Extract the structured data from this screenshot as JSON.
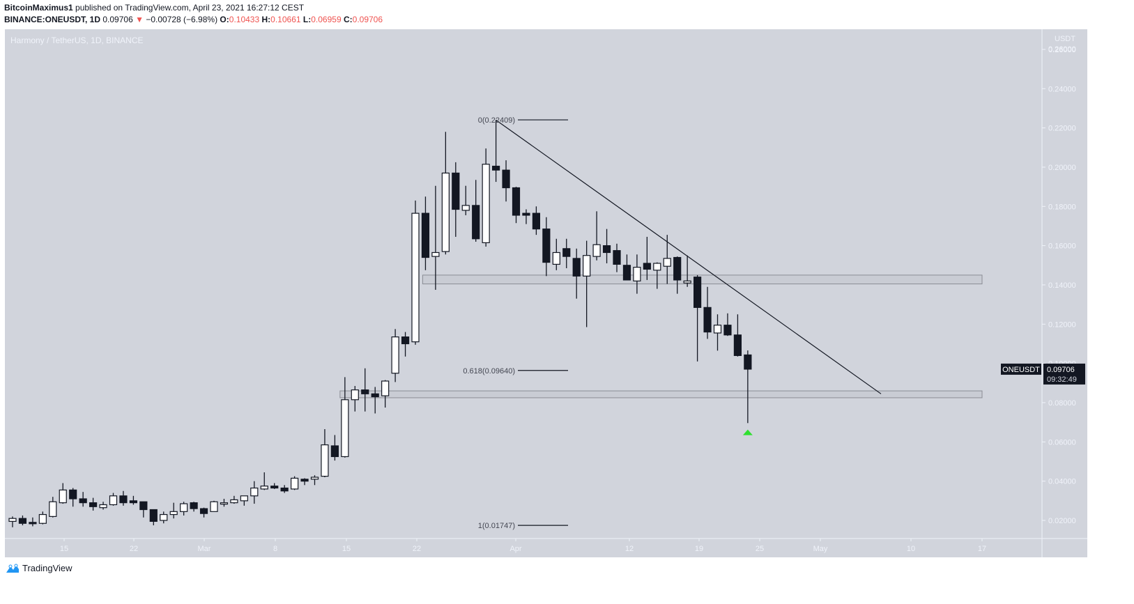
{
  "header": {
    "author": "BitcoinMaximus1",
    "published_text": " published on TradingView.com, April 23, 2021 16:27:12 CEST",
    "symbol": "BINANCE:ONEUSDT, 1D",
    "last": "0.09706",
    "change": "−0.00728 (−6.98%)",
    "o_label": "O:",
    "o": "0.10433",
    "h_label": "H:",
    "h": "0.10661",
    "l_label": "L:",
    "l": "0.06959",
    "c_label": "C:",
    "c": "0.09706"
  },
  "chart_title": "Harmony / TetherUS, 1D, BINANCE",
  "price_axis_unit": "USDT",
  "last_price_tag": {
    "symbol": "ONEUSDT",
    "price": "0.09706",
    "countdown": "09:32:49"
  },
  "footer": {
    "brand": "TradingView"
  },
  "colors": {
    "background": "#d1d4dc",
    "up_body": "#ffffff",
    "down_body": "#131722",
    "axis_text": "#f0f3fa",
    "zone": "#c3c6cf",
    "arrow": "#2fe02f"
  },
  "chart_data": {
    "type": "candlestick",
    "title": "Harmony / TetherUS, 1D, BINANCE",
    "ylabel": "USDT",
    "ylim": [
      0.0,
      0.26
    ],
    "y_ticks": [
      "0.26000",
      "0.24000",
      "0.22000",
      "0.20000",
      "0.18000",
      "0.16000",
      "0.14000",
      "0.12000",
      "0.10000",
      "0.08000",
      "0.06000",
      "0.04000",
      "0.02000"
    ],
    "x_ticks": [
      "15",
      "22",
      "Mar",
      "8",
      "15",
      "22",
      "Apr",
      "12",
      "19",
      "25",
      "May",
      "10",
      "17"
    ],
    "candles": [
      {
        "d": "Feb 9",
        "o": 0.0195,
        "h": 0.022,
        "l": 0.0165,
        "c": 0.021
      },
      {
        "d": "Feb 10",
        "o": 0.021,
        "h": 0.0225,
        "l": 0.0175,
        "c": 0.0185
      },
      {
        "d": "Feb 11",
        "o": 0.019,
        "h": 0.0215,
        "l": 0.017,
        "c": 0.0185
      },
      {
        "d": "Feb 12",
        "o": 0.0185,
        "h": 0.0245,
        "l": 0.018,
        "c": 0.023
      },
      {
        "d": "Feb 13",
        "o": 0.022,
        "h": 0.032,
        "l": 0.0215,
        "c": 0.0295
      },
      {
        "d": "Feb 14",
        "o": 0.029,
        "h": 0.039,
        "l": 0.0285,
        "c": 0.0355
      },
      {
        "d": "Feb 15",
        "o": 0.0355,
        "h": 0.0365,
        "l": 0.027,
        "c": 0.031
      },
      {
        "d": "Feb 16",
        "o": 0.031,
        "h": 0.0345,
        "l": 0.027,
        "c": 0.029
      },
      {
        "d": "Feb 17",
        "o": 0.029,
        "h": 0.0315,
        "l": 0.025,
        "c": 0.027
      },
      {
        "d": "Feb 18",
        "o": 0.0265,
        "h": 0.0295,
        "l": 0.0255,
        "c": 0.028
      },
      {
        "d": "Feb 19",
        "o": 0.028,
        "h": 0.034,
        "l": 0.0275,
        "c": 0.0325
      },
      {
        "d": "Feb 20",
        "o": 0.0325,
        "h": 0.035,
        "l": 0.0275,
        "c": 0.029
      },
      {
        "d": "Feb 21",
        "o": 0.03,
        "h": 0.0325,
        "l": 0.028,
        "c": 0.029
      },
      {
        "d": "Feb 22",
        "o": 0.0295,
        "h": 0.0295,
        "l": 0.0215,
        "c": 0.0255
      },
      {
        "d": "Feb 23",
        "o": 0.0255,
        "h": 0.0255,
        "l": 0.0175,
        "c": 0.0195
      },
      {
        "d": "Feb 24",
        "o": 0.02,
        "h": 0.0245,
        "l": 0.0185,
        "c": 0.023
      },
      {
        "d": "Feb 25",
        "o": 0.023,
        "h": 0.029,
        "l": 0.021,
        "c": 0.0245
      },
      {
        "d": "Feb 26",
        "o": 0.0245,
        "h": 0.0295,
        "l": 0.0225,
        "c": 0.0285
      },
      {
        "d": "Feb 27",
        "o": 0.029,
        "h": 0.0295,
        "l": 0.0245,
        "c": 0.026
      },
      {
        "d": "Feb 28",
        "o": 0.026,
        "h": 0.0265,
        "l": 0.0215,
        "c": 0.0235
      },
      {
        "d": "Mar 1",
        "o": 0.0245,
        "h": 0.03,
        "l": 0.0245,
        "c": 0.0295
      },
      {
        "d": "Mar 2",
        "o": 0.029,
        "h": 0.031,
        "l": 0.027,
        "c": 0.029
      },
      {
        "d": "Mar 3",
        "o": 0.029,
        "h": 0.0325,
        "l": 0.0285,
        "c": 0.0305
      },
      {
        "d": "Mar 4",
        "o": 0.03,
        "h": 0.0325,
        "l": 0.0275,
        "c": 0.0325
      },
      {
        "d": "Mar 5",
        "o": 0.0325,
        "h": 0.04,
        "l": 0.0285,
        "c": 0.0365
      },
      {
        "d": "Mar 6",
        "o": 0.036,
        "h": 0.0445,
        "l": 0.0355,
        "c": 0.0375
      },
      {
        "d": "Mar 7",
        "o": 0.0375,
        "h": 0.039,
        "l": 0.036,
        "c": 0.0365
      },
      {
        "d": "Mar 8",
        "o": 0.0365,
        "h": 0.038,
        "l": 0.034,
        "c": 0.035
      },
      {
        "d": "Mar 9",
        "o": 0.036,
        "h": 0.0425,
        "l": 0.0355,
        "c": 0.0415
      },
      {
        "d": "Mar 10",
        "o": 0.041,
        "h": 0.0415,
        "l": 0.038,
        "c": 0.04
      },
      {
        "d": "Mar 11",
        "o": 0.041,
        "h": 0.043,
        "l": 0.038,
        "c": 0.042
      },
      {
        "d": "Mar 12",
        "o": 0.0425,
        "h": 0.0665,
        "l": 0.042,
        "c": 0.0585
      },
      {
        "d": "Mar 13",
        "o": 0.058,
        "h": 0.0635,
        "l": 0.0505,
        "c": 0.0525
      },
      {
        "d": "Mar 14",
        "o": 0.0525,
        "h": 0.093,
        "l": 0.052,
        "c": 0.0815
      },
      {
        "d": "Mar 15",
        "o": 0.0815,
        "h": 0.0885,
        "l": 0.0755,
        "c": 0.0865
      },
      {
        "d": "Mar 16",
        "o": 0.0865,
        "h": 0.0975,
        "l": 0.0755,
        "c": 0.0845
      },
      {
        "d": "Mar 17",
        "o": 0.0845,
        "h": 0.088,
        "l": 0.0745,
        "c": 0.083
      },
      {
        "d": "Mar 18",
        "o": 0.0835,
        "h": 0.0915,
        "l": 0.0775,
        "c": 0.091
      },
      {
        "d": "Mar 19",
        "o": 0.095,
        "h": 0.1175,
        "l": 0.0905,
        "c": 0.1135
      },
      {
        "d": "Mar 20",
        "o": 0.1135,
        "h": 0.116,
        "l": 0.1035,
        "c": 0.11
      },
      {
        "d": "Mar 21",
        "o": 0.111,
        "h": 0.183,
        "l": 0.1095,
        "c": 0.1765
      },
      {
        "d": "Mar 22",
        "o": 0.1765,
        "h": 0.185,
        "l": 0.1475,
        "c": 0.154
      },
      {
        "d": "Mar 23",
        "o": 0.1545,
        "h": 0.1905,
        "l": 0.1375,
        "c": 0.1565
      },
      {
        "d": "Mar 24",
        "o": 0.157,
        "h": 0.218,
        "l": 0.1555,
        "c": 0.197
      },
      {
        "d": "Mar 25",
        "o": 0.197,
        "h": 0.2025,
        "l": 0.1645,
        "c": 0.1785
      },
      {
        "d": "Mar 26",
        "o": 0.178,
        "h": 0.1905,
        "l": 0.1755,
        "c": 0.1805
      },
      {
        "d": "Mar 27",
        "o": 0.1805,
        "h": 0.1935,
        "l": 0.162,
        "c": 0.1635
      },
      {
        "d": "Mar 28",
        "o": 0.1615,
        "h": 0.2095,
        "l": 0.1595,
        "c": 0.2015
      },
      {
        "d": "Mar 29",
        "o": 0.2005,
        "h": 0.224,
        "l": 0.1925,
        "c": 0.1985
      },
      {
        "d": "Mar 30",
        "o": 0.1985,
        "h": 0.2035,
        "l": 0.1825,
        "c": 0.1895
      },
      {
        "d": "Mar 31",
        "o": 0.1895,
        "h": 0.19,
        "l": 0.1715,
        "c": 0.1755
      },
      {
        "d": "Apr 1",
        "o": 0.1765,
        "h": 0.1785,
        "l": 0.171,
        "c": 0.1755
      },
      {
        "d": "Apr 2",
        "o": 0.1765,
        "h": 0.18,
        "l": 0.1655,
        "c": 0.1685
      },
      {
        "d": "Apr 3",
        "o": 0.1685,
        "h": 0.1745,
        "l": 0.1445,
        "c": 0.1515
      },
      {
        "d": "Apr 4",
        "o": 0.1505,
        "h": 0.1635,
        "l": 0.1475,
        "c": 0.1565
      },
      {
        "d": "Apr 5",
        "o": 0.1585,
        "h": 0.1635,
        "l": 0.1485,
        "c": 0.1545
      },
      {
        "d": "Apr 6",
        "o": 0.1535,
        "h": 0.1585,
        "l": 0.133,
        "c": 0.1445
      },
      {
        "d": "Apr 7",
        "o": 0.1445,
        "h": 0.1625,
        "l": 0.1185,
        "c": 0.155
      },
      {
        "d": "Apr 8",
        "o": 0.1545,
        "h": 0.1775,
        "l": 0.1525,
        "c": 0.1605
      },
      {
        "d": "Apr 9",
        "o": 0.16,
        "h": 0.1685,
        "l": 0.151,
        "c": 0.1565
      },
      {
        "d": "Apr 10",
        "o": 0.1575,
        "h": 0.161,
        "l": 0.1465,
        "c": 0.1505
      },
      {
        "d": "Apr 11",
        "o": 0.15,
        "h": 0.1555,
        "l": 0.1425,
        "c": 0.1425
      },
      {
        "d": "Apr 12",
        "o": 0.142,
        "h": 0.1555,
        "l": 0.1355,
        "c": 0.149
      },
      {
        "d": "Apr 13",
        "o": 0.151,
        "h": 0.1645,
        "l": 0.1425,
        "c": 0.148
      },
      {
        "d": "Apr 14",
        "o": 0.1475,
        "h": 0.1515,
        "l": 0.138,
        "c": 0.151
      },
      {
        "d": "Apr 15",
        "o": 0.1495,
        "h": 0.1655,
        "l": 0.1405,
        "c": 0.1535
      },
      {
        "d": "Apr 16",
        "o": 0.154,
        "h": 0.1545,
        "l": 0.1355,
        "c": 0.1425
      },
      {
        "d": "Apr 17",
        "o": 0.141,
        "h": 0.155,
        "l": 0.139,
        "c": 0.142
      },
      {
        "d": "Apr 18",
        "o": 0.144,
        "h": 0.145,
        "l": 0.101,
        "c": 0.1285
      },
      {
        "d": "Apr 19",
        "o": 0.1285,
        "h": 0.139,
        "l": 0.1125,
        "c": 0.116
      },
      {
        "d": "Apr 20",
        "o": 0.1155,
        "h": 0.125,
        "l": 0.1065,
        "c": 0.1195
      },
      {
        "d": "Apr 21",
        "o": 0.1195,
        "h": 0.1255,
        "l": 0.114,
        "c": 0.1145
      },
      {
        "d": "Apr 22",
        "o": 0.1145,
        "h": 0.125,
        "l": 0.1035,
        "c": 0.104
      },
      {
        "d": "Apr 23",
        "o": 0.10433,
        "h": 0.10661,
        "l": 0.06959,
        "c": 0.09706
      }
    ],
    "annotations": {
      "fib_levels": [
        {
          "label": "0(0.22409)",
          "price": 0.22409
        },
        {
          "label": "0.618(0.09640)",
          "price": 0.0964
        },
        {
          "label": "1(0.01747)",
          "price": 0.01747
        }
      ],
      "zones": [
        {
          "name": "resistance-zone",
          "from": 0.1405,
          "to": 0.145
        },
        {
          "name": "support-zone",
          "from": 0.0825,
          "to": 0.086
        }
      ],
      "trendline": {
        "from": {
          "d": "Mar 29",
          "price": 0.224
        },
        "to": {
          "d": "May 7",
          "price": 0.0845
        }
      },
      "arrow": {
        "d": "Apr 23",
        "price": 0.0645,
        "direction": "up",
        "color": "#2fe02f"
      }
    }
  }
}
